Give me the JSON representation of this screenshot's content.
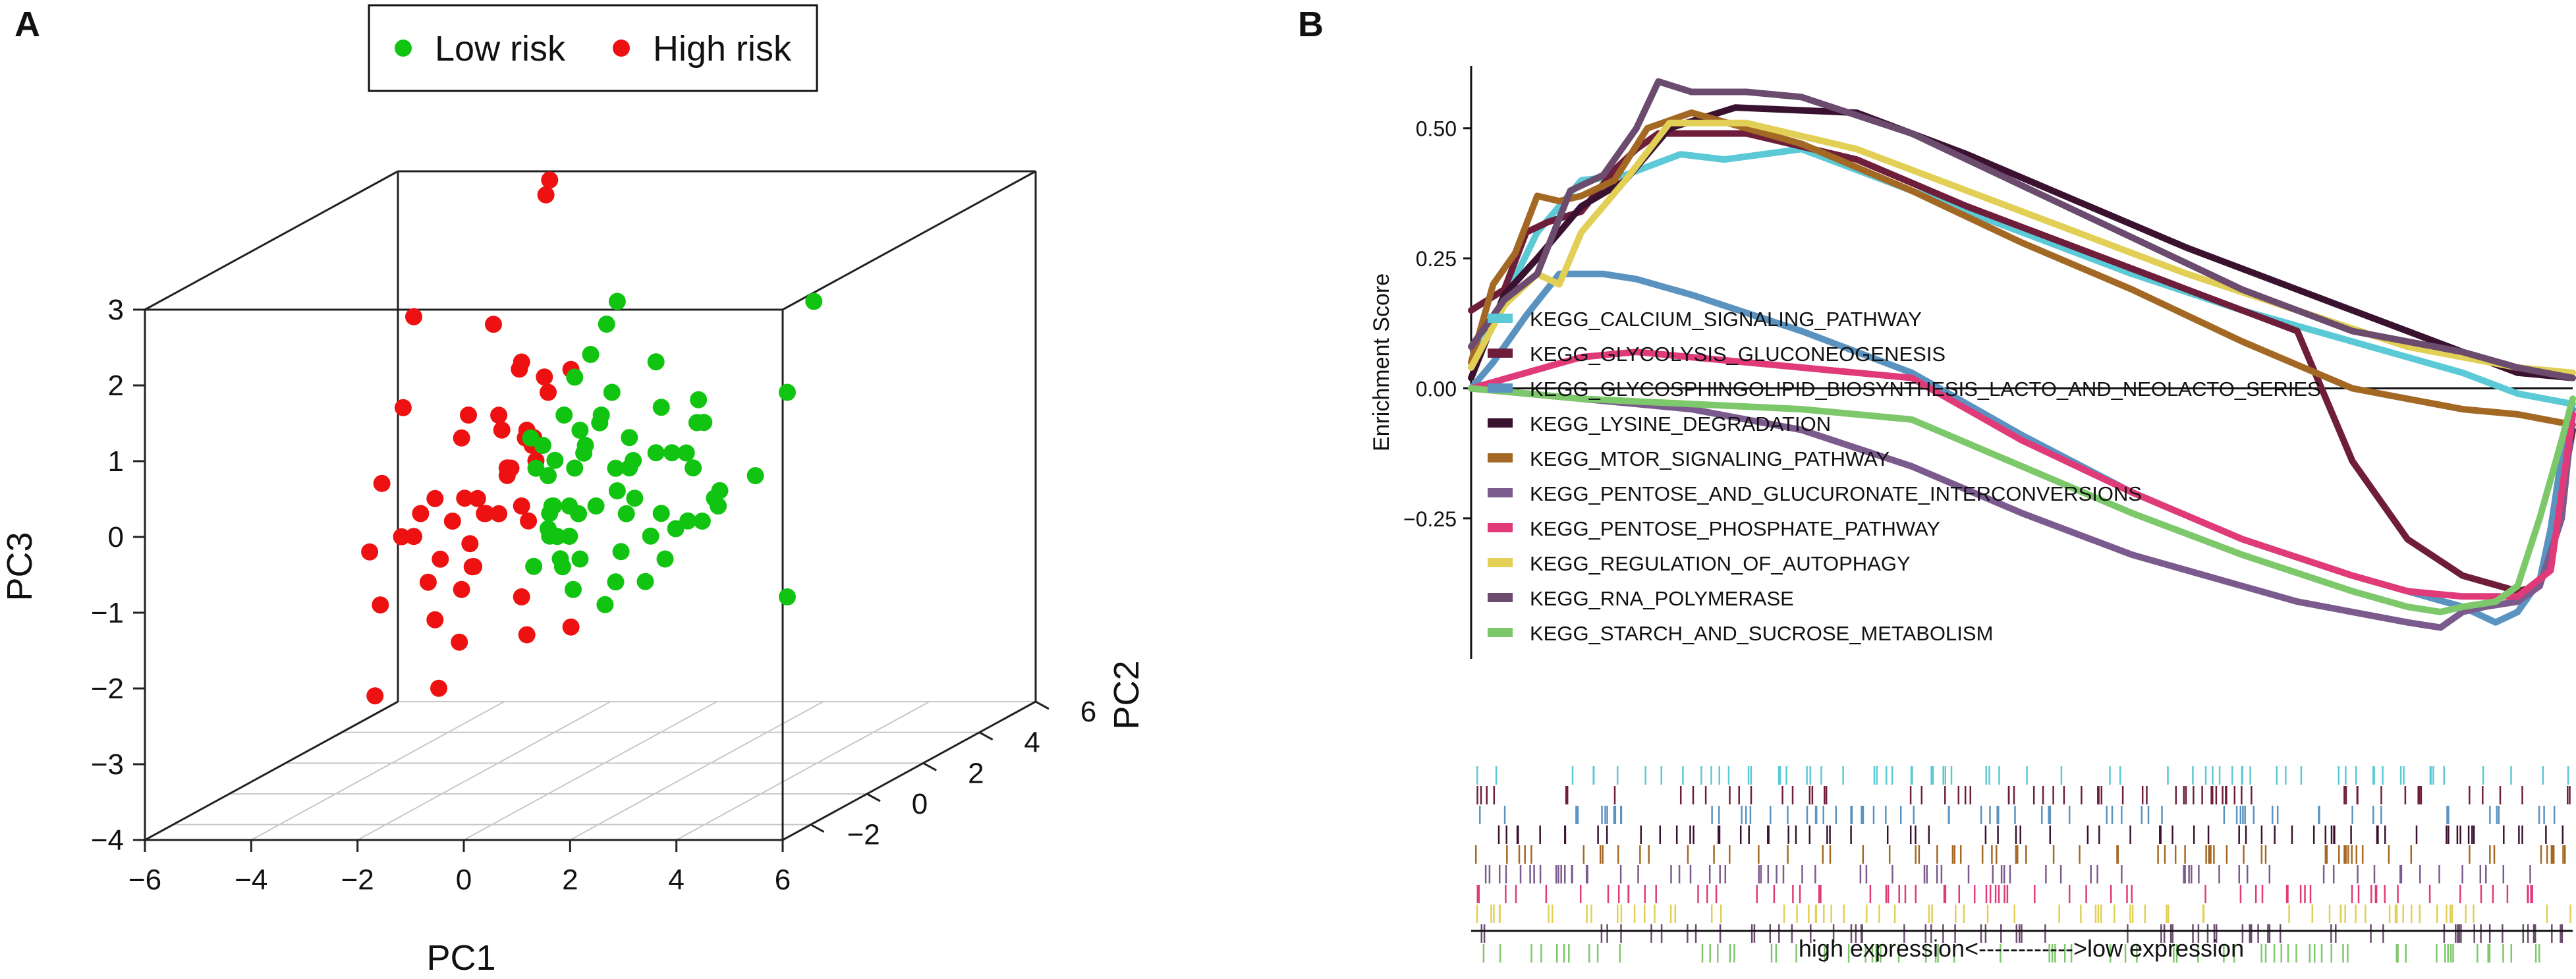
{
  "panels": {
    "a": {
      "label": "A"
    },
    "b": {
      "label": "B"
    }
  },
  "colors": {
    "low_risk": "#11c411",
    "high_risk": "#ee1111",
    "axis": "#222222",
    "grid": "#c8c8c8"
  },
  "chart_data": [
    {
      "id": "pca3d",
      "type": "scatter",
      "projection": "3d",
      "title": "",
      "xlabel": "PC1",
      "ylabel": "PC2",
      "zlabel": "PC3",
      "xlim": [
        -6,
        6
      ],
      "ylim": [
        -3,
        6
      ],
      "zlim": [
        -4,
        3
      ],
      "x_ticks": [
        -6,
        -4,
        -2,
        0,
        2,
        4,
        6
      ],
      "y_ticks": [
        -2,
        0,
        2,
        4,
        6
      ],
      "y_tick_labels": [
        "−2",
        "0",
        "2",
        "4",
        "6"
      ],
      "z_ticks": [
        -4,
        -3,
        -2,
        -1,
        0,
        1,
        2,
        3
      ],
      "x_tick_labels": [
        "−6",
        "−4",
        "−2",
        "0",
        "2",
        "4",
        "6"
      ],
      "z_tick_labels": [
        "−4",
        "−3",
        "−2",
        "−1",
        "0",
        "1",
        "2",
        "3"
      ],
      "legend": {
        "placement": "top",
        "entries": [
          {
            "name": "Low risk",
            "color": "#11c411"
          },
          {
            "name": "High risk",
            "color": "#ee1111"
          }
        ]
      },
      "series": [
        {
          "name": "High risk",
          "color": "#ee1111",
          "points": [
            [
              -2.0,
              -1,
              2.5
            ],
            [
              -1.1,
              2,
              3.5
            ],
            [
              -0.5,
              1,
              3.9
            ],
            [
              -2.2,
              -1,
              1.3
            ],
            [
              -1.4,
              1,
              0.6
            ],
            [
              -2.1,
              1,
              -0.3
            ],
            [
              -2.4,
              0,
              -0.3
            ],
            [
              -2.6,
              -1,
              0.3
            ],
            [
              -1.6,
              -1,
              0.1
            ],
            [
              -1.3,
              1,
              0.1
            ],
            [
              -2.3,
              -2,
              -0.4
            ],
            [
              -1.7,
              -2,
              -0.2
            ],
            [
              -1.8,
              0,
              -0.4
            ],
            [
              -2.0,
              -1,
              -0.4
            ],
            [
              -1.5,
              -1,
              -0.7
            ],
            [
              -2.0,
              1,
              -0.9
            ],
            [
              -2.1,
              -2,
              -1.1
            ],
            [
              -1.2,
              -2,
              -0.8
            ],
            [
              -1.1,
              -1,
              -1.1
            ],
            [
              -1.6,
              -1,
              -1.5
            ],
            [
              -2.2,
              1,
              -2.2
            ],
            [
              -0.1,
              1,
              -2.0
            ],
            [
              -2.2,
              -2,
              -2.3
            ],
            [
              -0.4,
              0,
              0.8
            ],
            [
              -0.1,
              1,
              1.4
            ],
            [
              -0.5,
              0,
              1.7
            ],
            [
              -0.4,
              -1,
              1.2
            ],
            [
              -0.6,
              1,
              1.3
            ],
            [
              0.0,
              0,
              1.3
            ],
            [
              -0.8,
              1,
              0.5
            ],
            [
              -0.8,
              -1,
              0.1
            ],
            [
              -0.4,
              -1,
              -0.1
            ],
            [
              -0.9,
              1,
              -0.6
            ],
            [
              -0.9,
              -1,
              -0.8
            ],
            [
              -0.5,
              0,
              -1.4
            ],
            [
              -1.0,
              -2,
              -2.2
            ],
            [
              0.3,
              -1,
              0.6
            ],
            [
              0.1,
              -1,
              0.9
            ],
            [
              -0.3,
              0,
              0.6
            ],
            [
              -1.1,
              -1,
              0.9
            ],
            [
              -1.3,
              1,
              0.0
            ],
            [
              -1.7,
              1,
              -0.5
            ],
            [
              -1.2,
              0,
              -0.3
            ],
            [
              -0.5,
              0,
              -0.2
            ],
            [
              -0.7,
              0,
              0.3
            ],
            [
              -1.6,
              2,
              1.2
            ],
            [
              -0.5,
              -1,
              2.4
            ],
            [
              -1.4,
              0,
              -1.0
            ],
            [
              -1.5,
              0,
              1.0
            ],
            [
              -0.4,
              0,
              -1.9
            ]
          ]
        },
        {
          "name": "Low risk",
          "color": "#11c411",
          "points": [
            [
              5.0,
              0,
              2.5
            ],
            [
              4.5,
              0,
              1.3
            ],
            [
              3.9,
              0,
              0.2
            ],
            [
              4.5,
              0,
              -1.4
            ],
            [
              1.5,
              1,
              1.5
            ],
            [
              1.6,
              1,
              0.9
            ],
            [
              1.5,
              1,
              0.3
            ],
            [
              2.6,
              1,
              -0.3
            ],
            [
              2.7,
              1,
              -0.2
            ],
            [
              2.2,
              1,
              0.1
            ],
            [
              2.1,
              1,
              -0.6
            ],
            [
              2.4,
              1,
              0.7
            ],
            [
              2.3,
              1,
              1.0
            ],
            [
              1.8,
              1,
              0.3
            ],
            [
              1.6,
              1,
              -0.5
            ],
            [
              1.4,
              1,
              -0.8
            ],
            [
              1.3,
              1,
              -1.4
            ],
            [
              1.1,
              1,
              -0.3
            ],
            [
              1.0,
              1,
              0.1
            ],
            [
              1.0,
              1,
              0.5
            ],
            [
              1.2,
              0,
              1.3
            ],
            [
              1.3,
              0,
              2.5
            ],
            [
              1.1,
              0,
              2.2
            ],
            [
              0.8,
              0,
              1.8
            ],
            [
              0.5,
              0,
              1.5
            ],
            [
              0.6,
              0,
              0.8
            ],
            [
              0.5,
              0,
              0.3
            ],
            [
              0.4,
              0,
              -0.2
            ],
            [
              0.4,
              0,
              -0.6
            ],
            [
              0.6,
              0,
              -0.9
            ],
            [
              0.1,
              0,
              -0.2
            ],
            [
              0.0,
              0,
              0.2
            ],
            [
              -0.1,
              0,
              0.6
            ],
            [
              0.0,
              0,
              -0.5
            ],
            [
              -0.4,
              1,
              0.2
            ],
            [
              -0.5,
              1,
              -0.5
            ],
            [
              -0.5,
              1,
              -0.8
            ],
            [
              -0.3,
              1,
              -1.1
            ],
            [
              -0.8,
              1,
              -1.2
            ],
            [
              0.2,
              -1,
              0.9
            ],
            [
              0.3,
              -1,
              0.5
            ],
            [
              0.6,
              -1,
              0.0
            ],
            [
              0.7,
              -1,
              -0.4
            ],
            [
              0.8,
              -1,
              -0.8
            ],
            [
              1.0,
              -1,
              -1.1
            ],
            [
              1.1,
              -1,
              -0.1
            ],
            [
              1.2,
              -1,
              0.7
            ],
            [
              1.5,
              -1,
              1.1
            ],
            [
              1.8,
              -1,
              0.5
            ],
            [
              2.0,
              -1,
              -0.1
            ],
            [
              1.9,
              -1,
              -0.6
            ],
            [
              1.8,
              -1,
              -1.0
            ],
            [
              1.6,
              -1,
              -1.3
            ],
            [
              2.6,
              0,
              0.5
            ],
            [
              2.9,
              0,
              -0.4
            ],
            [
              3.2,
              0,
              -0.2
            ],
            [
              2.8,
              0,
              0.9
            ],
            [
              0.9,
              0,
              -0.2
            ],
            [
              0.7,
              0,
              0.6
            ],
            [
              1.3,
              0,
              0.0
            ],
            [
              1.6,
              0,
              0.4
            ],
            [
              1.0,
              0,
              1.0
            ],
            [
              0.3,
              0,
              1.0
            ],
            [
              2.4,
              0,
              -0.5
            ],
            [
              2.2,
              0,
              -0.9
            ]
          ]
        }
      ]
    },
    {
      "id": "gsea",
      "type": "line",
      "title": "",
      "xlabel": "high expression<------------>low expression",
      "ylabel": "Enrichment Score",
      "xlim": [
        0,
        100
      ],
      "ylim": [
        -0.52,
        0.62
      ],
      "y_ticks": [
        -0.25,
        0.0,
        0.25,
        0.5
      ],
      "y_tick_labels": [
        "−0.25",
        "0.00",
        "0.25",
        "0.50"
      ],
      "legend": {
        "placement": "center-left"
      },
      "series": [
        {
          "name": "KEGG_CALCIUM_SIGNALING_PATHWAY",
          "color": "#5bc9d6",
          "x": [
            0,
            3,
            6,
            10,
            14,
            19,
            23,
            30,
            40,
            50,
            60,
            70,
            80,
            90,
            95,
            100
          ],
          "y": [
            0.04,
            0.17,
            0.3,
            0.4,
            0.41,
            0.45,
            0.44,
            0.46,
            0.38,
            0.3,
            0.22,
            0.15,
            0.09,
            0.03,
            -0.01,
            -0.03
          ]
        },
        {
          "name": "KEGG_GLYCOLYSIS_GLUCONEOGENESIS",
          "color": "#6e1d3a",
          "x": [
            0,
            3,
            5,
            7,
            10,
            13,
            15,
            17,
            25,
            35,
            45,
            55,
            65,
            75,
            80,
            85,
            90,
            95,
            97,
            98,
            99,
            100
          ],
          "y": [
            0.15,
            0.19,
            0.3,
            0.32,
            0.34,
            0.42,
            0.46,
            0.49,
            0.49,
            0.44,
            0.35,
            0.27,
            0.19,
            0.11,
            -0.14,
            -0.29,
            -0.36,
            -0.39,
            -0.38,
            -0.3,
            -0.2,
            -0.08
          ]
        },
        {
          "name": "KEGG_GLYCOSPHINGOLIPID_BIOSYNTHESIS_LACTO_AND_NEOLACTO_SERIES",
          "color": "#5b93c0",
          "x": [
            0,
            2,
            5,
            8,
            12,
            15,
            20,
            30,
            40,
            50,
            60,
            70,
            80,
            90,
            93,
            95,
            97,
            98,
            99,
            100
          ],
          "y": [
            0.0,
            0.05,
            0.14,
            0.22,
            0.22,
            0.21,
            0.18,
            0.11,
            0.03,
            -0.09,
            -0.2,
            -0.29,
            -0.36,
            -0.42,
            -0.45,
            -0.43,
            -0.37,
            -0.27,
            -0.13,
            -0.04
          ]
        },
        {
          "name": "KEGG_LYSINE_DEGRADATION",
          "color": "#3a1230",
          "x": [
            0,
            3,
            6,
            10,
            14,
            18,
            24,
            35,
            45,
            55,
            65,
            75,
            85,
            90,
            95,
            100
          ],
          "y": [
            0.02,
            0.18,
            0.25,
            0.35,
            0.4,
            0.5,
            0.54,
            0.53,
            0.45,
            0.36,
            0.27,
            0.19,
            0.11,
            0.07,
            0.03,
            0.02
          ]
        },
        {
          "name": "KEGG_MTOR_SIGNALING_PATHWAY",
          "color": "#a36924",
          "x": [
            0,
            2,
            4,
            6,
            8,
            10,
            13,
            16,
            20,
            25,
            30,
            40,
            50,
            60,
            70,
            80,
            90,
            95,
            100
          ],
          "y": [
            0.05,
            0.2,
            0.26,
            0.37,
            0.36,
            0.37,
            0.4,
            0.5,
            0.53,
            0.5,
            0.47,
            0.38,
            0.28,
            0.19,
            0.09,
            0.0,
            -0.04,
            -0.05,
            -0.07
          ]
        },
        {
          "name": "KEGG_PENTOSE_AND_GLUCURONATE_INTERCONVERSIONS",
          "color": "#7b5b8e",
          "x": [
            0,
            5,
            10,
            20,
            30,
            40,
            50,
            60,
            70,
            75,
            80,
            85,
            88,
            90,
            92,
            95,
            97,
            99,
            100
          ],
          "y": [
            0.0,
            -0.01,
            -0.02,
            -0.04,
            -0.08,
            -0.15,
            -0.24,
            -0.32,
            -0.38,
            -0.41,
            -0.43,
            -0.45,
            -0.46,
            -0.43,
            -0.42,
            -0.41,
            -0.38,
            -0.25,
            -0.05
          ]
        },
        {
          "name": "KEGG_PENTOSE_PHOSPHATE_PATHWAY",
          "color": "#e03a78",
          "x": [
            0,
            5,
            10,
            15,
            20,
            30,
            40,
            50,
            60,
            70,
            80,
            85,
            90,
            95,
            98,
            100
          ],
          "y": [
            0.0,
            0.03,
            0.06,
            0.07,
            0.06,
            0.04,
            0.02,
            -0.1,
            -0.2,
            -0.29,
            -0.36,
            -0.39,
            -0.4,
            -0.4,
            -0.35,
            -0.05
          ]
        },
        {
          "name": "KEGG_REGULATION_OF_AUTOPHAGY",
          "color": "#e2cf55",
          "x": [
            0,
            3,
            6,
            8,
            10,
            14,
            18,
            25,
            35,
            45,
            55,
            65,
            75,
            85,
            95,
            100
          ],
          "y": [
            0.04,
            0.16,
            0.22,
            0.2,
            0.3,
            0.4,
            0.51,
            0.51,
            0.46,
            0.38,
            0.3,
            0.22,
            0.15,
            0.08,
            0.04,
            0.03
          ]
        },
        {
          "name": "KEGG_RNA_POLYMERASE",
          "color": "#6b4c6e",
          "x": [
            0,
            3,
            6,
            9,
            12,
            15,
            17,
            20,
            25,
            30,
            40,
            50,
            60,
            70,
            80,
            90,
            95,
            100
          ],
          "y": [
            0.08,
            0.17,
            0.22,
            0.38,
            0.41,
            0.5,
            0.59,
            0.57,
            0.57,
            0.56,
            0.49,
            0.39,
            0.29,
            0.19,
            0.11,
            0.07,
            0.04,
            0.02
          ]
        },
        {
          "name": "KEGG_STARCH_AND_SUCROSE_METABOLISM",
          "color": "#7dc86a",
          "x": [
            0,
            5,
            10,
            20,
            30,
            40,
            50,
            60,
            70,
            80,
            85,
            88,
            90,
            93,
            95,
            97,
            99,
            100
          ],
          "y": [
            0.0,
            -0.01,
            -0.02,
            -0.03,
            -0.04,
            -0.06,
            -0.15,
            -0.24,
            -0.32,
            -0.39,
            -0.42,
            -0.43,
            -0.42,
            -0.41,
            -0.38,
            -0.25,
            -0.1,
            -0.02
          ]
        }
      ]
    }
  ]
}
